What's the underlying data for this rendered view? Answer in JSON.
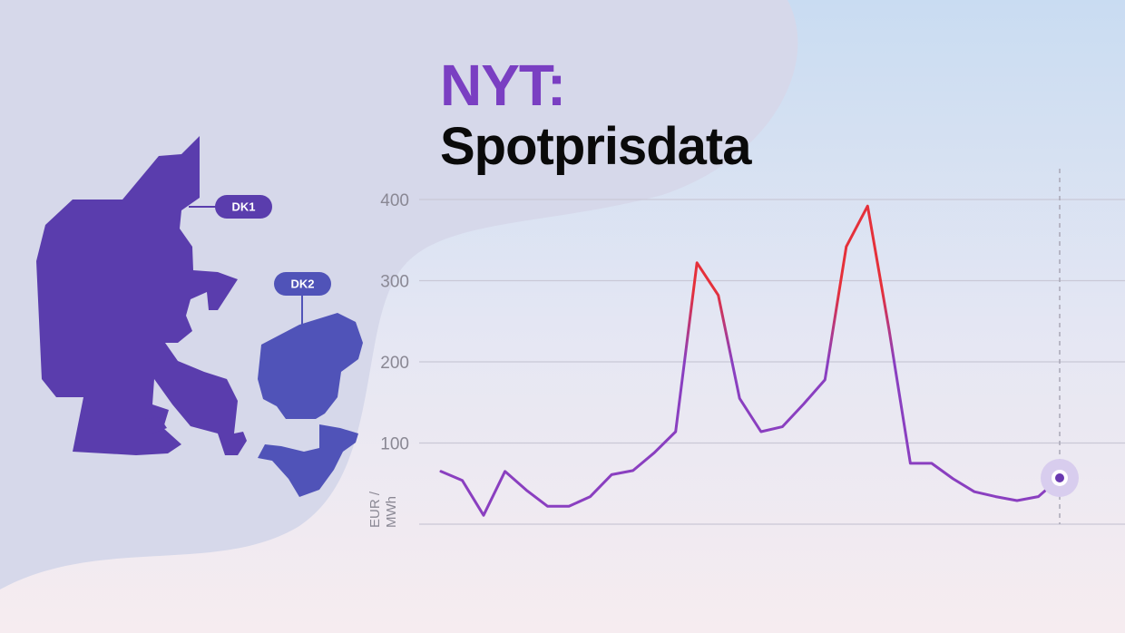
{
  "title": {
    "accent": "NYT:",
    "main": "Spotprisdata"
  },
  "map": {
    "regions": [
      {
        "label": "DK1",
        "color": "#5a3dad"
      },
      {
        "label": "DK2",
        "color": "#5053b8"
      }
    ]
  },
  "colors": {
    "low": "#8a3fc0",
    "high": "#e5303a",
    "grid": "#c9c8d6",
    "marker": "#6a3ab0"
  },
  "chart_data": {
    "type": "line",
    "ylabel": "EUR / MWh",
    "ylabel_lines": [
      "EUR /",
      "MWh"
    ],
    "ylim": [
      0,
      400
    ],
    "yticks": [
      100,
      200,
      300,
      400
    ],
    "grid": true,
    "series": [
      {
        "values": [
          65,
          54,
          11,
          65,
          42,
          22,
          22,
          34,
          61,
          66,
          88,
          114,
          322,
          282,
          155,
          114,
          120,
          148,
          178,
          342,
          392,
          240,
          75,
          75,
          56,
          40,
          34,
          29,
          34,
          57
        ]
      }
    ],
    "highlight_last": true
  }
}
